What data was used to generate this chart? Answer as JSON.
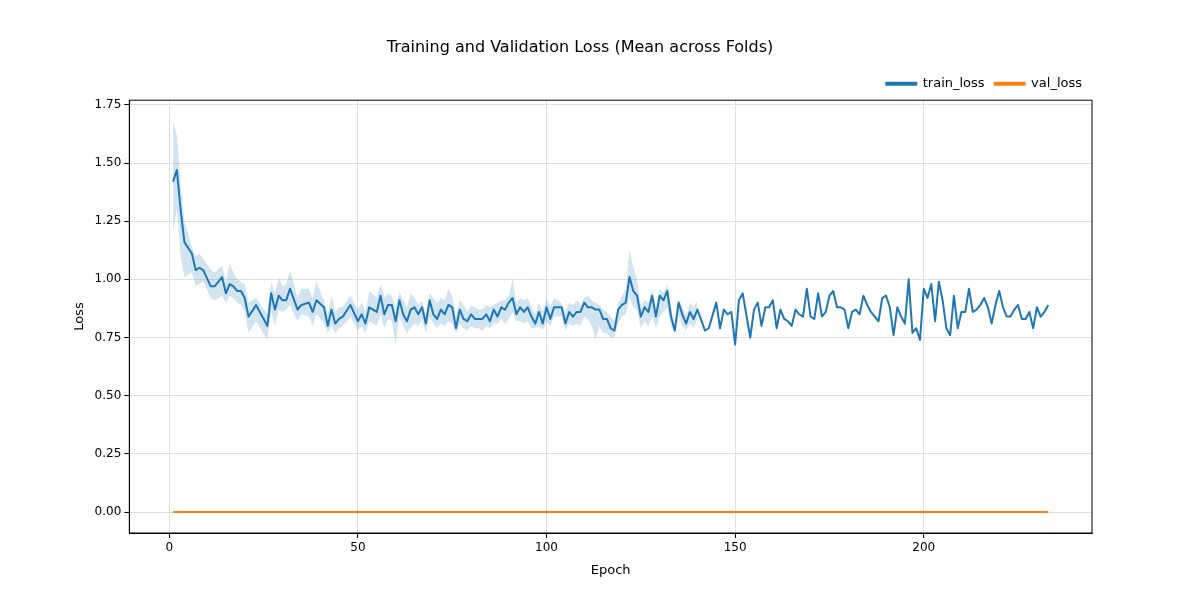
{
  "chart_data": {
    "type": "line",
    "title": "Training and Validation Loss (Mean across Folds)",
    "xlabel": "Epoch",
    "ylabel": "Loss",
    "xlim": [
      -10.6,
      244.6
    ],
    "ylim": [
      -0.09,
      1.77
    ],
    "xticks": [
      0,
      50,
      100,
      150,
      200
    ],
    "yticks": [
      {
        "value": 0,
        "label": "0.00"
      },
      {
        "value": 0.25,
        "label": "0.25"
      },
      {
        "value": 0.5,
        "label": "0.50"
      },
      {
        "value": 0.75,
        "label": "0.75"
      },
      {
        "value": 1,
        "label": "1.00"
      },
      {
        "value": 1.25,
        "label": "1.25"
      },
      {
        "value": 1.5,
        "label": "1.50"
      },
      {
        "value": 1.75,
        "label": "1.75"
      }
    ],
    "grid": true,
    "legend": "top right",
    "series": [
      {
        "name": "train_loss",
        "color": "#1f77b4",
        "x": [
          1,
          2,
          3,
          4,
          6,
          7,
          8,
          9,
          11,
          12,
          14,
          15,
          16,
          17,
          18,
          19,
          20,
          21,
          23,
          26,
          27,
          28,
          29,
          30,
          31,
          32,
          34,
          35,
          37,
          38,
          39,
          41,
          42,
          43,
          44,
          45,
          46,
          48,
          50,
          51,
          52,
          53,
          55,
          56,
          57,
          58,
          59,
          60,
          61,
          62,
          63,
          64,
          65,
          66,
          67,
          68,
          69,
          70,
          71,
          72,
          73,
          74,
          75,
          76,
          77,
          78,
          79,
          80,
          81,
          82,
          83,
          84,
          85,
          86,
          87,
          88,
          89,
          90,
          91,
          92,
          93,
          94,
          95,
          96,
          97,
          98,
          99,
          100,
          101,
          102,
          104,
          105,
          106,
          107,
          108,
          109,
          110,
          111,
          112,
          113,
          114,
          115,
          116,
          117,
          118,
          119,
          120,
          121,
          122,
          123,
          124,
          125,
          126,
          127,
          128,
          129,
          130,
          131,
          132,
          133,
          134,
          135,
          136,
          137,
          138,
          139,
          140,
          142,
          143,
          145,
          146,
          147,
          148,
          149,
          150,
          151,
          152,
          154,
          155,
          156,
          157,
          158,
          159,
          160,
          161,
          162,
          163,
          164,
          165,
          166,
          167,
          168,
          169,
          170,
          171,
          172,
          173,
          174,
          175,
          176,
          177,
          178,
          179,
          180,
          181,
          182,
          183,
          184,
          185,
          186,
          187,
          188,
          189,
          190,
          191,
          192,
          193,
          194,
          195,
          196,
          197,
          198,
          199,
          200,
          201,
          202,
          203,
          204,
          205,
          206,
          207,
          208,
          209,
          210,
          211,
          212,
          213,
          214,
          215,
          216,
          217,
          218,
          219,
          220,
          221,
          222,
          223,
          224,
          225,
          226,
          227,
          228,
          229,
          230,
          231,
          232,
          233
        ],
        "values": [
          1.42,
          1.47,
          1.3,
          1.16,
          1.11,
          1.04,
          1.05,
          1.04,
          0.97,
          0.97,
          1.01,
          0.94,
          0.98,
          0.97,
          0.95,
          0.95,
          0.92,
          0.84,
          0.89,
          0.8,
          0.94,
          0.87,
          0.93,
          0.91,
          0.91,
          0.96,
          0.87,
          0.89,
          0.9,
          0.86,
          0.91,
          0.88,
          0.8,
          0.87,
          0.81,
          0.83,
          0.84,
          0.89,
          0.82,
          0.85,
          0.81,
          0.88,
          0.86,
          0.93,
          0.85,
          0.89,
          0.89,
          0.82,
          0.91,
          0.85,
          0.82,
          0.87,
          0.88,
          0.85,
          0.88,
          0.81,
          0.91,
          0.85,
          0.83,
          0.87,
          0.85,
          0.89,
          0.88,
          0.79,
          0.87,
          0.83,
          0.82,
          0.85,
          0.83,
          0.83,
          0.83,
          0.85,
          0.82,
          0.87,
          0.84,
          0.88,
          0.87,
          0.9,
          0.92,
          0.85,
          0.88,
          0.86,
          0.88,
          0.84,
          0.81,
          0.86,
          0.81,
          0.88,
          0.83,
          0.88,
          0.88,
          0.81,
          0.86,
          0.84,
          0.86,
          0.86,
          0.9,
          0.88,
          0.88,
          0.87,
          0.87,
          0.83,
          0.83,
          0.79,
          0.78,
          0.87,
          0.89,
          0.9,
          1.01,
          0.95,
          0.93,
          0.84,
          0.88,
          0.86,
          0.93,
          0.84,
          0.93,
          0.91,
          0.95,
          0.84,
          0.78,
          0.9,
          0.85,
          0.81,
          0.86,
          0.83,
          0.87,
          0.78,
          0.79,
          0.9,
          0.79,
          0.87,
          0.85,
          0.86,
          0.72,
          0.91,
          0.94,
          0.75,
          0.87,
          0.9,
          0.8,
          0.88,
          0.88,
          0.91,
          0.79,
          0.87,
          0.83,
          0.82,
          0.8,
          0.87,
          0.85,
          0.84,
          0.96,
          0.84,
          0.83,
          0.94,
          0.84,
          0.86,
          0.93,
          0.95,
          0.88,
          0.88,
          0.87,
          0.79,
          0.86,
          0.87,
          0.85,
          0.93,
          0.89,
          0.86,
          0.84,
          0.82,
          0.92,
          0.93,
          0.88,
          0.76,
          0.88,
          0.84,
          0.81,
          1.0,
          0.77,
          0.79,
          0.74,
          0.96,
          0.92,
          0.98,
          0.82,
          0.99,
          0.91,
          0.79,
          0.76,
          0.93,
          0.79,
          0.86,
          0.86,
          0.96,
          0.86,
          0.87,
          0.89,
          0.92,
          0.88,
          0.81,
          0.89,
          0.95,
          0.88,
          0.84,
          0.84,
          0.87,
          0.89,
          0.83,
          0.83,
          0.86,
          0.79,
          0.88,
          0.84,
          0.86,
          0.89
        ],
        "lower": [
          1.2,
          1.3,
          1.1,
          1.01,
          1.03,
          0.97,
          0.98,
          0.99,
          0.92,
          0.91,
          0.93,
          0.9,
          0.93,
          0.92,
          0.9,
          0.89,
          0.86,
          0.77,
          0.82,
          0.74,
          0.86,
          0.8,
          0.87,
          0.86,
          0.87,
          0.89,
          0.82,
          0.85,
          0.84,
          0.8,
          0.85,
          0.81,
          0.77,
          0.8,
          0.77,
          0.79,
          0.8,
          0.84,
          0.78,
          0.8,
          0.77,
          0.82,
          0.8,
          0.85,
          0.79,
          0.83,
          0.82,
          0.72,
          0.84,
          0.8,
          0.77,
          0.79,
          0.81,
          0.8,
          0.83,
          0.77,
          0.84,
          0.81,
          0.79,
          0.81,
          0.8,
          0.82,
          0.81,
          0.77,
          0.81,
          0.79,
          0.78,
          0.8,
          0.79,
          0.79,
          0.78,
          0.8,
          0.79,
          0.81,
          0.81,
          0.83,
          0.81,
          0.83,
          0.86,
          0.82,
          0.82,
          0.81,
          0.82,
          0.79,
          0.79,
          0.8,
          0.78,
          0.82,
          0.8,
          0.84,
          0.84,
          0.78,
          0.81,
          0.8,
          0.81,
          0.8,
          0.84,
          0.83,
          0.8,
          0.74,
          0.8,
          0.77,
          0.77,
          0.75,
          0.75,
          0.81,
          0.84,
          0.85,
          0.92,
          0.88,
          0.87,
          0.79,
          0.82,
          0.8,
          0.84,
          0.79,
          0.84,
          0.86,
          0.88,
          0.8,
          0.77,
          0.85,
          0.8,
          0.78,
          0.81,
          0.79,
          0.83,
          null,
          null,
          null,
          null,
          null,
          null,
          null,
          null,
          null,
          null,
          null,
          null,
          null,
          null,
          null,
          null,
          null,
          null,
          null,
          null,
          null,
          null,
          null,
          null,
          null,
          null,
          null,
          null,
          null,
          null,
          null,
          null,
          null,
          null,
          null,
          null,
          null,
          null,
          null,
          null,
          null,
          null,
          null,
          null,
          null,
          null,
          null,
          null,
          null,
          null,
          null,
          null,
          null,
          null,
          null,
          null,
          null,
          null,
          null,
          null,
          null,
          null,
          null,
          null,
          null,
          null,
          null,
          null,
          null,
          null,
          null,
          null,
          null,
          null,
          null,
          null,
          null,
          null,
          null,
          null,
          null,
          null,
          null,
          null,
          null,
          null,
          null,
          null,
          null,
          null
        ],
        "upper": [
          1.68,
          1.62,
          1.42,
          1.25,
          1.14,
          1.1,
          1.11,
          1.09,
          1.04,
          1.03,
          1.06,
          0.99,
          1.07,
          1.03,
          1.0,
          0.99,
          0.98,
          0.9,
          0.92,
          0.85,
          0.99,
          0.94,
          1.01,
          0.97,
          0.98,
          1.04,
          0.92,
          0.96,
          0.96,
          0.92,
          0.99,
          0.91,
          0.85,
          0.93,
          0.86,
          0.88,
          0.88,
          0.93,
          0.87,
          0.9,
          0.86,
          0.95,
          0.92,
          0.98,
          0.92,
          0.94,
          0.93,
          0.88,
          0.95,
          0.91,
          0.88,
          0.94,
          0.92,
          0.89,
          0.91,
          0.85,
          0.94,
          0.92,
          0.9,
          0.92,
          0.91,
          0.96,
          0.93,
          0.84,
          0.91,
          0.89,
          0.86,
          0.89,
          0.88,
          0.87,
          0.87,
          0.89,
          0.88,
          0.89,
          0.9,
          0.91,
          0.91,
          0.93,
          1.0,
          0.9,
          0.92,
          0.91,
          0.92,
          0.88,
          0.85,
          0.9,
          0.86,
          0.92,
          0.88,
          0.92,
          0.9,
          0.86,
          0.9,
          0.89,
          0.91,
          0.89,
          0.92,
          0.93,
          0.91,
          0.9,
          0.89,
          0.87,
          0.86,
          0.84,
          0.82,
          0.9,
          0.93,
          0.96,
          1.13,
          1.05,
          1.0,
          0.89,
          0.91,
          0.9,
          0.96,
          0.88,
          0.96,
          0.94,
          0.98,
          0.88,
          0.8,
          0.92,
          0.88,
          0.84,
          0.9,
          0.88,
          0.91,
          null,
          null,
          null,
          null,
          null,
          null,
          null,
          null,
          null,
          null,
          null,
          null,
          null,
          null,
          null,
          null,
          null,
          null,
          null,
          null,
          null,
          null,
          null,
          null,
          null,
          null,
          null,
          null,
          null,
          null,
          null,
          null,
          null,
          null,
          null,
          null,
          null,
          null,
          null,
          null,
          null,
          null,
          null,
          null,
          null,
          null,
          null,
          null,
          null,
          null,
          null,
          null,
          null,
          null,
          null,
          null,
          null,
          null,
          null,
          null,
          null,
          null,
          null,
          null,
          null,
          null,
          null,
          null,
          null,
          null,
          null,
          null,
          null,
          null,
          null,
          null,
          null,
          null,
          null,
          null,
          null,
          null,
          null,
          null,
          null,
          null,
          null,
          null,
          null,
          null
        ]
      },
      {
        "name": "val_loss",
        "color": "#ff7f0e",
        "x": [
          1,
          233
        ],
        "values": [
          0,
          0
        ]
      }
    ]
  }
}
